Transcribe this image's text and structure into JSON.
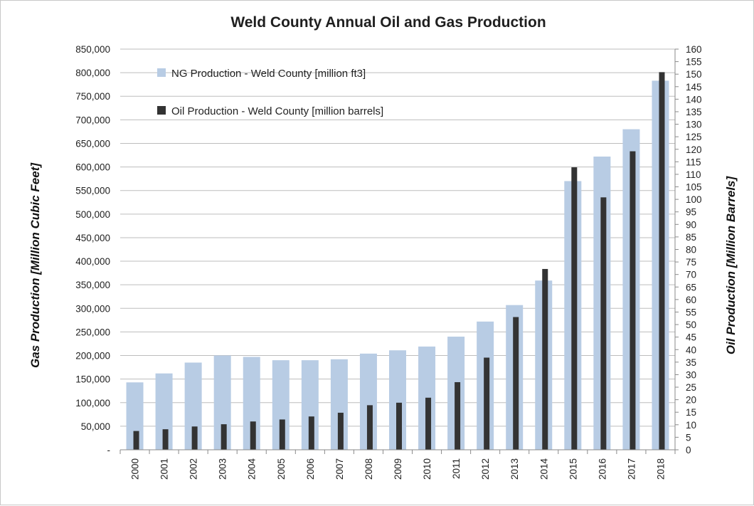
{
  "chart_data": {
    "type": "bar",
    "title": "Weld County Annual Oil and Gas Production",
    "ylabel_left": "Gas Production [Million Cubic Feet]",
    "ylabel_right": "Oil Production [Million Barrels]",
    "xlabel": "",
    "categories": [
      "2000",
      "2001",
      "2002",
      "2003",
      "2004",
      "2005",
      "2006",
      "2007",
      "2008",
      "2009",
      "2010",
      "2011",
      "2012",
      "2013",
      "2014",
      "2015",
      "2016",
      "2017",
      "2018"
    ],
    "ylim_left": [
      0,
      850000
    ],
    "ylim_right": [
      0,
      160
    ],
    "left_ticks": [
      "-",
      "50,000",
      "100,000",
      "150,000",
      "200,000",
      "250,000",
      "300,000",
      "350,000",
      "400,000",
      "450,000",
      "500,000",
      "550,000",
      "600,000",
      "650,000",
      "700,000",
      "750,000",
      "800,000",
      "850,000"
    ],
    "right_ticks": [
      "0",
      "5",
      "10",
      "15",
      "20",
      "25",
      "30",
      "35",
      "40",
      "45",
      "50",
      "55",
      "60",
      "65",
      "70",
      "75",
      "80",
      "85",
      "90",
      "95",
      "100",
      "105",
      "110",
      "115",
      "120",
      "125",
      "130",
      "135",
      "140",
      "145",
      "150",
      "155",
      "160"
    ],
    "series": [
      {
        "name": "NG  Production - Weld County [million ft3]",
        "axis": "left",
        "color": "#b8cce4",
        "values": [
          143000,
          162000,
          185000,
          200000,
          197000,
          190000,
          190000,
          192000,
          204000,
          211000,
          219000,
          240000,
          272000,
          307000,
          359000,
          570000,
          622000,
          680000,
          783000
        ]
      },
      {
        "name": "Oil Production - Weld County [million barrels]",
        "axis": "right",
        "color": "#333333",
        "values": [
          7.5,
          8.2,
          9.3,
          10.2,
          11.3,
          12.1,
          13.3,
          14.8,
          17.8,
          18.8,
          20.8,
          27.0,
          36.8,
          53.0,
          72.2,
          112.8,
          100.8,
          119.2,
          150.8
        ]
      }
    ],
    "grid": true,
    "legend": "top-left"
  }
}
